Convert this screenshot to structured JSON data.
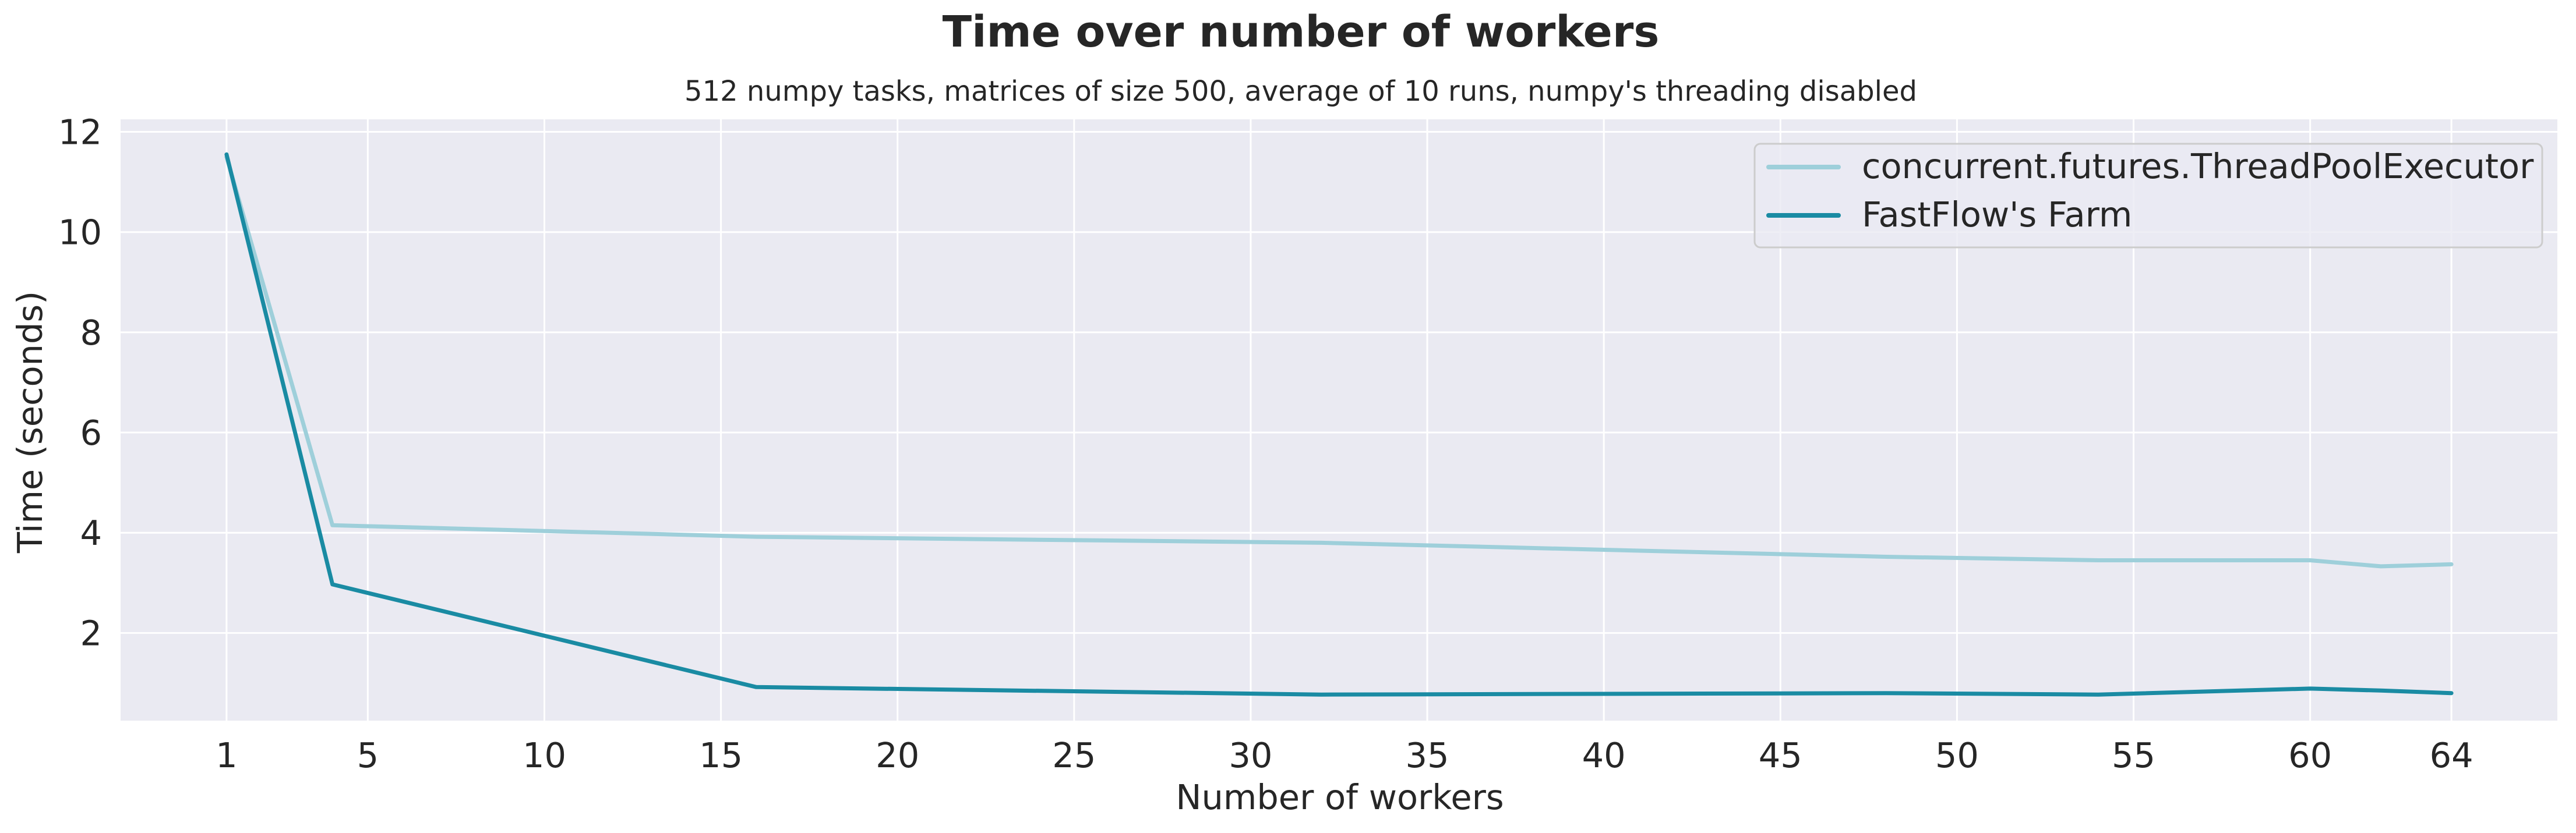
{
  "chart_data": {
    "type": "line",
    "title": "Time over number of workers",
    "subtitle": "512 numpy tasks, matrices of size 500, average of 10 runs, numpy's threading disabled",
    "xlabel": "Number of workers",
    "ylabel": "Time (seconds)",
    "xlim": [
      -2,
      67
    ],
    "ylim": [
      0.25,
      12.25
    ],
    "x_ticks": [
      1,
      5,
      10,
      15,
      20,
      25,
      30,
      35,
      40,
      45,
      50,
      55,
      60,
      64
    ],
    "y_ticks": [
      2,
      4,
      6,
      8,
      10,
      12
    ],
    "grid": true,
    "legend_position": "top-right",
    "background": "#eaeaf2",
    "series": [
      {
        "name": "concurrent.futures.ThreadPoolExecutor",
        "color": "#9ecfda",
        "x": [
          1,
          4,
          16,
          32,
          48,
          54,
          60,
          62,
          64
        ],
        "values": [
          11.5,
          4.15,
          3.92,
          3.8,
          3.52,
          3.45,
          3.45,
          3.33,
          3.37
        ]
      },
      {
        "name": "FastFlow's Farm",
        "color": "#1a8ba3",
        "x": [
          1,
          4,
          16,
          32,
          48,
          54,
          60,
          62,
          64
        ],
        "values": [
          11.55,
          2.97,
          0.92,
          0.77,
          0.8,
          0.77,
          0.89,
          0.85,
          0.8
        ]
      }
    ]
  }
}
